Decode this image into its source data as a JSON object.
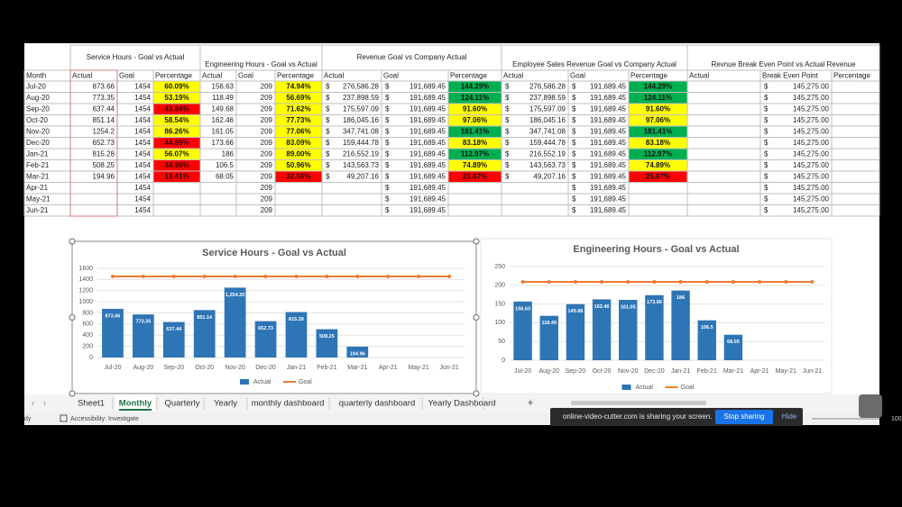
{
  "table": {
    "groups": [
      "Service Hours - Goal vs Actual",
      "Engineering Hours - Goal vs Actual",
      "Revenue Goal vs Company Actual",
      "Employee Sales Revenue Goal vs Company Actual",
      "Revnue Break Even Point vs Actual Revenue"
    ],
    "columns": [
      "Month",
      "Actual",
      "Goal",
      "Percentage",
      "Actual",
      "Goal",
      "Percentage",
      "Actual",
      "Goal",
      "Percentage",
      "Actual",
      "Goal",
      "Percentage",
      "Actual",
      "Break Even Point",
      "Percentage"
    ],
    "rows": [
      [
        "Jul-20",
        "873.66",
        "1454",
        {
          "text": "60.09%",
          "fill": "#ffff00"
        },
        "156.63",
        "209",
        {
          "text": "74.94%",
          "fill": "#ffff00"
        },
        {
          "sym": "$",
          "text": "276,586.28"
        },
        {
          "sym": "$",
          "text": "191,689.45"
        },
        {
          "text": "144.29%",
          "fill": "#00b050"
        },
        {
          "sym": "$",
          "text": "276,586.28"
        },
        {
          "sym": "$",
          "text": "191,689.45"
        },
        {
          "text": "144.29%",
          "fill": "#00b050"
        },
        null,
        {
          "sym": "$",
          "text": "145,275.00"
        },
        null
      ],
      [
        "Aug-20",
        "773.35",
        "1454",
        {
          "text": "53.19%",
          "fill": "#ffff00"
        },
        "118.49",
        "209",
        {
          "text": "56.69%",
          "fill": "#ffff00"
        },
        {
          "sym": "$",
          "text": "237,898.59"
        },
        {
          "sym": "$",
          "text": "191,689.45"
        },
        {
          "text": "124.11%",
          "fill": "#00b050"
        },
        {
          "sym": "$",
          "text": "237,898.59"
        },
        {
          "sym": "$",
          "text": "191,689.45"
        },
        {
          "text": "124.11%",
          "fill": "#00b050"
        },
        null,
        {
          "sym": "$",
          "text": "145,275.00"
        },
        null
      ],
      [
        "Sep-20",
        "637.44",
        "1454",
        {
          "text": "43.84%",
          "fill": "#ff0000"
        },
        "149.68",
        "209",
        {
          "text": "71.62%",
          "fill": "#ffff00"
        },
        {
          "sym": "$",
          "text": "175,597.09"
        },
        {
          "sym": "$",
          "text": "191,689.45"
        },
        {
          "text": "91.60%",
          "fill": "#ffff00"
        },
        {
          "sym": "$",
          "text": "175,597.09"
        },
        {
          "sym": "$",
          "text": "191,689.45"
        },
        {
          "text": "91.60%",
          "fill": "#ffff00"
        },
        null,
        {
          "sym": "$",
          "text": "145,275.00"
        },
        null
      ],
      [
        "Oct-20",
        "851.14",
        "1454",
        {
          "text": "58.54%",
          "fill": "#ffff00"
        },
        "162.46",
        "209",
        {
          "text": "77.73%",
          "fill": "#ffff00"
        },
        {
          "sym": "$",
          "text": "186,045.16"
        },
        {
          "sym": "$",
          "text": "191,689.45"
        },
        {
          "text": "97.06%",
          "fill": "#ffff00"
        },
        {
          "sym": "$",
          "text": "186,045.16"
        },
        {
          "sym": "$",
          "text": "191,689.45"
        },
        {
          "text": "97.06%",
          "fill": "#ffff00"
        },
        null,
        {
          "sym": "$",
          "text": "145,275.00"
        },
        null
      ],
      [
        "Nov-20",
        "1254.2",
        "1454",
        {
          "text": "86.26%",
          "fill": "#ffff00"
        },
        "161.05",
        "209",
        {
          "text": "77.06%",
          "fill": "#ffff00"
        },
        {
          "sym": "$",
          "text": "347,741.08"
        },
        {
          "sym": "$",
          "text": "191,689.45"
        },
        {
          "text": "181.41%",
          "fill": "#00b050"
        },
        {
          "sym": "$",
          "text": "347,741.08"
        },
        {
          "sym": "$",
          "text": "191,689.45"
        },
        {
          "text": "181.41%",
          "fill": "#00b050"
        },
        null,
        {
          "sym": "$",
          "text": "145,275.00"
        },
        null
      ],
      [
        "Dec-20",
        "652.73",
        "1454",
        {
          "text": "44.89%",
          "fill": "#ff0000"
        },
        "173.66",
        "209",
        {
          "text": "83.09%",
          "fill": "#ffff00"
        },
        {
          "sym": "$",
          "text": "159,444.78"
        },
        {
          "sym": "$",
          "text": "191,689.45"
        },
        {
          "text": "83.18%",
          "fill": "#ffff00"
        },
        {
          "sym": "$",
          "text": "159,444.78"
        },
        {
          "sym": "$",
          "text": "191,689.45"
        },
        {
          "text": "83.18%",
          "fill": "#ffff00"
        },
        null,
        {
          "sym": "$",
          "text": "145,275.00"
        },
        null
      ],
      [
        "Jan-21",
        "815.28",
        "1454",
        {
          "text": "56.07%",
          "fill": "#ffff00"
        },
        "186",
        "209",
        {
          "text": "89.00%",
          "fill": "#ffff00"
        },
        {
          "sym": "$",
          "text": "216,552.19"
        },
        {
          "sym": "$",
          "text": "191,689.45"
        },
        {
          "text": "112.97%",
          "fill": "#00b050"
        },
        {
          "sym": "$",
          "text": "216,552.19"
        },
        {
          "sym": "$",
          "text": "191,689.45"
        },
        {
          "text": "112.97%",
          "fill": "#00b050"
        },
        null,
        {
          "sym": "$",
          "text": "145,275.00"
        },
        null
      ],
      [
        "Feb-21",
        "508.25",
        "1454",
        {
          "text": "34.96%",
          "fill": "#ff0000"
        },
        "106.5",
        "209",
        {
          "text": "50.96%",
          "fill": "#ffff00"
        },
        {
          "sym": "$",
          "text": "143,563.73"
        },
        {
          "sym": "$",
          "text": "191,689.45"
        },
        {
          "text": "74.89%",
          "fill": "#ffff00"
        },
        {
          "sym": "$",
          "text": "143,563.73"
        },
        {
          "sym": "$",
          "text": "191,689.45"
        },
        {
          "text": "74.89%",
          "fill": "#ffff00"
        },
        null,
        {
          "sym": "$",
          "text": "145,275.00"
        },
        null
      ],
      [
        "Mar-21",
        "194.96",
        "1454",
        {
          "text": "13.41%",
          "fill": "#ff0000"
        },
        "68.05",
        "209",
        {
          "text": "32.56%",
          "fill": "#ff0000"
        },
        {
          "sym": "$",
          "text": "49,207.16"
        },
        {
          "sym": "$",
          "text": "191,689.45"
        },
        {
          "text": "25.67%",
          "fill": "#ff0000"
        },
        {
          "sym": "$",
          "text": "49,207.16"
        },
        {
          "sym": "$",
          "text": "191,689.45"
        },
        {
          "text": "25.67%",
          "fill": "#ff0000"
        },
        null,
        {
          "sym": "$",
          "text": "145,275.00"
        },
        null
      ],
      [
        "Apr-21",
        null,
        "1454",
        null,
        null,
        "209",
        null,
        null,
        {
          "sym": "$",
          "text": "191,689.45"
        },
        null,
        null,
        {
          "sym": "$",
          "text": "191,689.45"
        },
        null,
        null,
        {
          "sym": "$",
          "text": "145,275.00"
        },
        null
      ],
      [
        "May-21",
        null,
        "1454",
        null,
        null,
        "209",
        null,
        null,
        {
          "sym": "$",
          "text": "191,689.45"
        },
        null,
        null,
        {
          "sym": "$",
          "text": "191,689.45"
        },
        null,
        null,
        {
          "sym": "$",
          "text": "145,275.00"
        },
        null
      ],
      [
        "Jun-21",
        null,
        "1454",
        null,
        null,
        "209",
        null,
        null,
        {
          "sym": "$",
          "text": "191,689.45"
        },
        null,
        null,
        {
          "sym": "$",
          "text": "191,689.45"
        },
        null,
        null,
        {
          "sym": "$",
          "text": "145,275.00"
        },
        null
      ]
    ]
  },
  "chart_data": [
    {
      "type": "bar",
      "title": "Service Hours - Goal vs Actual",
      "categories": [
        "Jul-20",
        "Aug-20",
        "Sep-20",
        "Oct-20",
        "Nov-20",
        "Dec-20",
        "Jan-21",
        "Feb-21",
        "Mar-21",
        "Apr-21",
        "May-21",
        "Jun-21"
      ],
      "series": [
        {
          "name": "Actual",
          "color": "#2e75b6",
          "values": [
            873.66,
            773.35,
            637.44,
            851.14,
            1254.2,
            652.73,
            815.28,
            508.25,
            194.96,
            null,
            null,
            null
          ],
          "value_labels": [
            "873.66",
            "773.35",
            "637.44",
            "851.14",
            "1,254.20",
            "652.73",
            "815.28",
            "508.25",
            "194.96",
            null,
            null,
            null
          ]
        },
        {
          "name": "Goal",
          "color": "#ed7d31",
          "type": "line",
          "values": [
            1454,
            1454,
            1454,
            1454,
            1454,
            1454,
            1454,
            1454,
            1454,
            1454,
            1454,
            1454
          ]
        }
      ],
      "ylim": [
        0,
        1600
      ],
      "yticks": [
        0,
        200,
        400,
        600,
        800,
        1000,
        1200,
        1400,
        1600
      ],
      "grid": true,
      "legend": "bottom"
    },
    {
      "type": "bar",
      "title": "Engineering Hours - Goal vs Actual",
      "categories": [
        "Jul-20",
        "Aug-20",
        "Sep-20",
        "Oct-20",
        "Nov-20",
        "Dec-20",
        "Jan-21",
        "Feb-21",
        "Mar-21",
        "Apr-21",
        "May-21",
        "Jun-21"
      ],
      "series": [
        {
          "name": "Actual",
          "color": "#2e75b6",
          "values": [
            156.63,
            118.49,
            149.68,
            162.46,
            161.05,
            173.66,
            186,
            106.5,
            68.05,
            null,
            null,
            null
          ]
        },
        {
          "name": "Goal",
          "color": "#ed7d31",
          "type": "line",
          "values": [
            209,
            209,
            209,
            209,
            209,
            209,
            209,
            209,
            209,
            209,
            209,
            209
          ]
        }
      ],
      "ylim": [
        0,
        250
      ],
      "yticks": [
        0,
        50,
        100,
        150,
        200,
        250
      ],
      "grid": true,
      "legend": "bottom"
    }
  ],
  "tabs": {
    "names": [
      "Sheet1",
      "Monthly",
      "Quarterly",
      "Yearly",
      "monthly dashboard",
      "quarterly dashboard",
      "Yearly Dashboard"
    ],
    "active": 1
  },
  "status": {
    "mode": "dy",
    "accessibility": "Accessibility: Investigate",
    "zoom": "100"
  },
  "sharing": {
    "message": "online-video-cutter.com is sharing your screen.",
    "stop": "Stop sharing",
    "hide": "Hide"
  }
}
